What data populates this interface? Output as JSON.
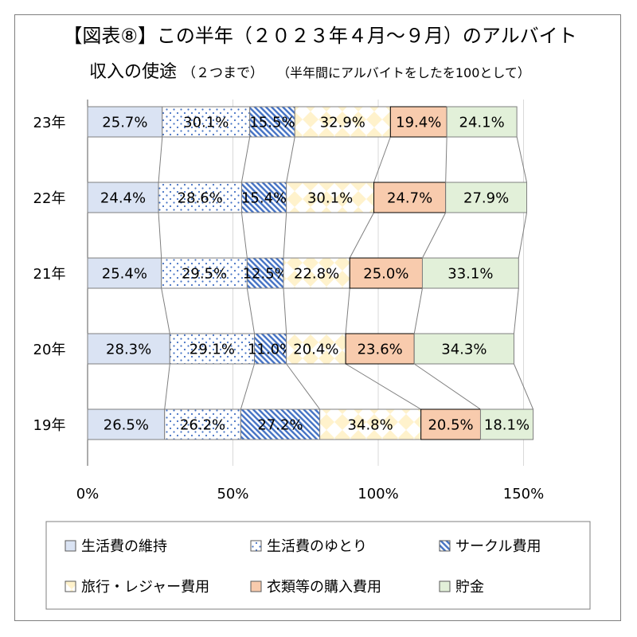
{
  "chart_data": {
    "type": "bar",
    "orientation": "horizontal",
    "stacked": true,
    "title_line1": "【図表⑧】この半年（２０２３年４月～９月）のアルバイト",
    "title_line2_main": "収入の使途",
    "title_line2_note1": "（２つまで）",
    "title_line2_note2": "（半年間にアルバイトをしたを100として）",
    "categories": [
      "23年",
      "22年",
      "21年",
      "20年",
      "19年"
    ],
    "xlim": [
      0,
      150
    ],
    "xticks": [
      "0%",
      "50%",
      "100%",
      "150%"
    ],
    "grid": true,
    "legend_position": "bottom",
    "series": [
      {
        "name": "生活費の維持",
        "values": [
          25.7,
          24.4,
          25.4,
          28.3,
          26.5
        ],
        "labels": [
          "25.7%",
          "24.4%",
          "25.4%",
          "28.3%",
          "26.5%"
        ],
        "color": "#dae3f3",
        "pattern": "solid"
      },
      {
        "name": "生活費のゆとり",
        "values": [
          30.1,
          28.6,
          29.5,
          29.1,
          26.2
        ],
        "labels": [
          "30.1%",
          "28.6%",
          "29.5%",
          "29.1%",
          "26.2%"
        ],
        "color": "#ffffff",
        "pattern": "dots"
      },
      {
        "name": "サークル費用",
        "values": [
          15.5,
          15.4,
          12.5,
          11.0,
          27.2
        ],
        "labels": [
          "15.5%",
          "15.4%",
          "12.5%",
          "11.0%",
          "27.2%"
        ],
        "color": "#4472c4",
        "pattern": "diagonal"
      },
      {
        "name": "旅行・レジャー費用",
        "values": [
          32.9,
          30.1,
          22.8,
          20.4,
          34.8
        ],
        "labels": [
          "32.9%",
          "30.1%",
          "22.8%",
          "20.4%",
          "34.8%"
        ],
        "color": "#fff2cc",
        "pattern": "diamond"
      },
      {
        "name": "衣類等の購入費用",
        "values": [
          19.4,
          24.7,
          25.0,
          23.6,
          20.5
        ],
        "labels": [
          "19.4%",
          "24.7%",
          "25.0%",
          "23.6%",
          "20.5%"
        ],
        "color": "#f8cbad",
        "pattern": "solid"
      },
      {
        "name": "貯金",
        "values": [
          24.1,
          27.9,
          33.1,
          34.3,
          18.1
        ],
        "labels": [
          "24.1%",
          "27.9%",
          "33.1%",
          "34.3%",
          "18.1%"
        ],
        "color": "#e2f0d9",
        "pattern": "solid"
      }
    ]
  }
}
